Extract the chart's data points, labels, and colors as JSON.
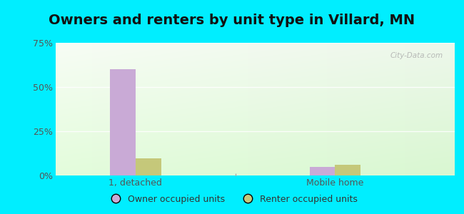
{
  "title": "Owners and renters by unit type in Villard, MN",
  "categories": [
    "1, detached",
    "Mobile home"
  ],
  "owner_values": [
    60.0,
    5.0
  ],
  "renter_values": [
    9.5,
    6.0
  ],
  "owner_color": "#c9aad6",
  "renter_color": "#c5c87a",
  "ylim": [
    0,
    75
  ],
  "yticks": [
    0,
    25,
    50,
    75
  ],
  "ytick_labels": [
    "0%",
    "25%",
    "50%",
    "75%"
  ],
  "bar_width": 0.32,
  "group_positions": [
    1.0,
    3.5
  ],
  "xlim": [
    0,
    5
  ],
  "legend_labels": [
    "Owner occupied units",
    "Renter occupied units"
  ],
  "watermark": "City-Data.com",
  "bg_outer": "#00eeff",
  "title_fontsize": 14,
  "axis_fontsize": 9,
  "legend_fontsize": 9
}
